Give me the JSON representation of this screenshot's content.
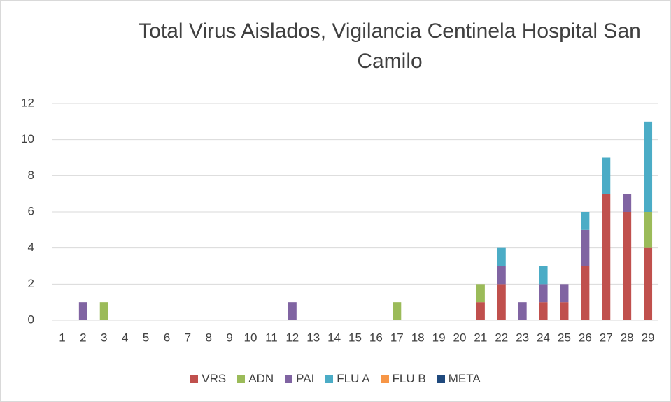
{
  "chart_data": {
    "type": "stacked_bar",
    "title": "Total Virus Aislados, Vigilancia Centinela Hospital San Camilo",
    "categories": [
      "1",
      "2",
      "3",
      "4",
      "5",
      "6",
      "7",
      "8",
      "9",
      "10",
      "11",
      "12",
      "13",
      "14",
      "15",
      "16",
      "17",
      "18",
      "19",
      "20",
      "21",
      "22",
      "23",
      "24",
      "25",
      "26",
      "27",
      "28",
      "29"
    ],
    "series": [
      {
        "name": "VRS",
        "color": "#c0504d",
        "values": [
          0,
          0,
          0,
          0,
          0,
          0,
          0,
          0,
          0,
          0,
          0,
          0,
          0,
          0,
          0,
          0,
          0,
          0,
          0,
          0,
          1,
          2,
          0,
          1,
          1,
          3,
          7,
          6,
          4
        ]
      },
      {
        "name": "ADN",
        "color": "#9bbb59",
        "values": [
          0,
          0,
          1,
          0,
          0,
          0,
          0,
          0,
          0,
          0,
          0,
          0,
          0,
          0,
          0,
          0,
          1,
          0,
          0,
          0,
          1,
          0,
          0,
          0,
          0,
          0,
          0,
          0,
          2
        ]
      },
      {
        "name": "PAI",
        "color": "#8064a2",
        "values": [
          0,
          1,
          0,
          0,
          0,
          0,
          0,
          0,
          0,
          0,
          0,
          1,
          0,
          0,
          0,
          0,
          0,
          0,
          0,
          0,
          0,
          1,
          1,
          1,
          1,
          2,
          0,
          1,
          0
        ]
      },
      {
        "name": "FLU A",
        "color": "#4bacc6",
        "values": [
          0,
          0,
          0,
          0,
          0,
          0,
          0,
          0,
          0,
          0,
          0,
          0,
          0,
          0,
          0,
          0,
          0,
          0,
          0,
          0,
          0,
          1,
          0,
          1,
          0,
          1,
          2,
          0,
          5
        ]
      },
      {
        "name": "FLU B",
        "color": "#f79646",
        "values": [
          0,
          0,
          0,
          0,
          0,
          0,
          0,
          0,
          0,
          0,
          0,
          0,
          0,
          0,
          0,
          0,
          0,
          0,
          0,
          0,
          0,
          0,
          0,
          0,
          0,
          0,
          0,
          0,
          0
        ]
      },
      {
        "name": "META",
        "color": "#1f497d",
        "values": [
          0,
          0,
          0,
          0,
          0,
          0,
          0,
          0,
          0,
          0,
          0,
          0,
          0,
          0,
          0,
          0,
          0,
          0,
          0,
          0,
          0,
          0,
          0,
          0,
          0,
          0,
          0,
          0,
          0
        ]
      }
    ],
    "ylim": [
      0,
      12
    ],
    "yticks": [
      0,
      2,
      4,
      6,
      8,
      10,
      12
    ],
    "grid": true,
    "legend": "bottom"
  }
}
